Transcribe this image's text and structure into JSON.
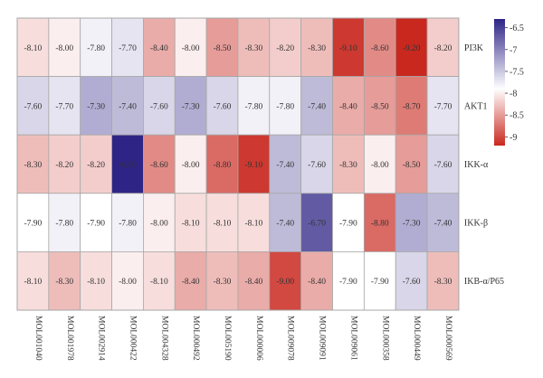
{
  "chart_data": {
    "type": "heatmap",
    "title": "",
    "xlabel": "",
    "ylabel": "",
    "x_categories": [
      "MOL001040",
      "MOL001978",
      "MOL002914",
      "MOL000422",
      "MOL004328",
      "MOL000492",
      "MOL005190",
      "MOL000006",
      "MOL009078",
      "MOL009091",
      "MOL009061",
      "MOL000358",
      "MOL000449",
      "MOL000569"
    ],
    "y_categories": [
      "PI3K",
      "AKT1",
      "IKK-α",
      "IKK-β",
      "IKB-α/P65"
    ],
    "values": [
      [
        -8.1,
        -8.0,
        -7.8,
        -7.7,
        -8.4,
        -8.0,
        -8.5,
        -8.3,
        -8.2,
        -8.3,
        -9.1,
        -8.6,
        -9.2,
        -8.2
      ],
      [
        -7.6,
        -7.7,
        -7.3,
        -7.4,
        -7.6,
        -7.3,
        -7.6,
        -7.8,
        -7.8,
        -7.4,
        -8.4,
        -8.5,
        -8.7,
        -7.7
      ],
      [
        -8.3,
        -8.2,
        -8.2,
        -6.3,
        -8.6,
        -8.0,
        -8.8,
        -9.1,
        -7.4,
        -7.6,
        -8.3,
        -8.0,
        -8.5,
        -7.6
      ],
      [
        -7.9,
        -7.8,
        -7.9,
        -7.8,
        -8.0,
        -8.1,
        -8.1,
        -8.1,
        -7.4,
        -6.7,
        -7.9,
        -8.8,
        -7.3,
        -7.4
      ],
      [
        -8.1,
        -8.3,
        -8.1,
        -8.0,
        -8.1,
        -8.4,
        -8.3,
        -8.4,
        -9.0,
        -8.4,
        -7.9,
        -7.9,
        -7.6,
        -8.3
      ]
    ],
    "value_labels": [
      [
        "-8.10",
        "-8.00",
        "-7.80",
        "-7.70",
        "-8.40",
        "-8.00",
        "-8.50",
        "-8.30",
        "-8.20",
        "-8.30",
        "-9.10",
        "-8.60",
        "-9.20",
        "-8.20"
      ],
      [
        "-7.60",
        "-7.70",
        "-7.30",
        "-7.40",
        "-7.60",
        "-7.30",
        "-7.60",
        "-7.80",
        "-7.80",
        "-7.40",
        "-8.40",
        "-8.50",
        "-8.70",
        "-7.70"
      ],
      [
        "-8.30",
        "-8.20",
        "-8.20",
        "-6.30",
        "-8.60",
        "-8.00",
        "-8.80",
        "-9.10",
        "-7.40",
        "-7.60",
        "-8.30",
        "-8.00",
        "-8.50",
        "-7.60"
      ],
      [
        "-7.90",
        "-7.80",
        "-7.90",
        "-7.80",
        "-8.00",
        "-8.10",
        "-8.10",
        "-8.10",
        "-7.40",
        "-6.70",
        "-7.90",
        "-8.80",
        "-7.30",
        "-7.40"
      ],
      [
        "-8.10",
        "-8.30",
        "-8.10",
        "-8.00",
        "-8.10",
        "-8.40",
        "-8.30",
        "-8.40",
        "-9.00",
        "-8.40",
        "-7.90",
        "-7.90",
        "-7.60",
        "-8.30"
      ]
    ],
    "colorbar": {
      "min": -9.2,
      "mid": -7.9,
      "max": -6.3,
      "ticks": [
        -6.5,
        -7,
        -7.5,
        -8,
        -8.5,
        -9
      ],
      "tick_labels": [
        "-6.5",
        "-7",
        "-7.5",
        "-8",
        "-8.5",
        "-9"
      ],
      "placement": "right"
    },
    "colors": {
      "low": "#c9281f",
      "mid": "#ffffff",
      "high": "#2e2486",
      "grid": "#a7a7a7",
      "cell_text": "#333333"
    }
  }
}
